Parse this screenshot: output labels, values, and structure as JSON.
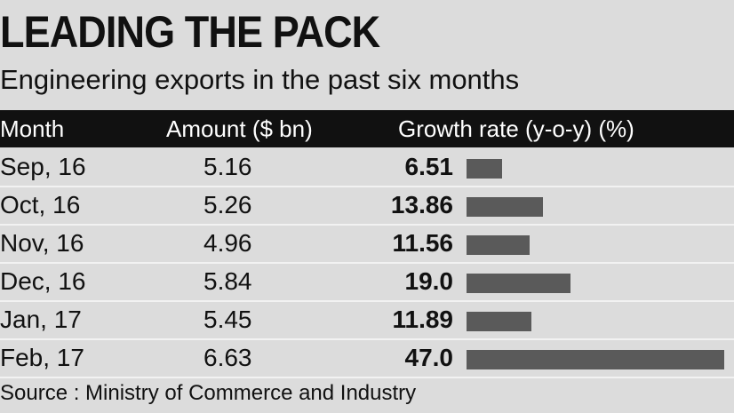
{
  "title": "LEADING THE PACK",
  "subtitle": "Engineering exports in the past six months",
  "headers": {
    "month": "Month",
    "amount": "Amount ($ bn)",
    "growth": "Growth rate (y-o-y) (%)"
  },
  "rows": [
    {
      "month": "Sep, 16",
      "amount": "5.16",
      "growth": "6.51"
    },
    {
      "month": "Oct, 16",
      "amount": "5.26",
      "growth": "13.86"
    },
    {
      "month": "Nov, 16",
      "amount": "4.96",
      "growth": "11.56"
    },
    {
      "month": "Dec, 16",
      "amount": "5.84",
      "growth": "19.0"
    },
    {
      "month": "Jan, 17",
      "amount": "5.45",
      "growth": "11.89"
    },
    {
      "month": "Feb, 17",
      "amount": "6.63",
      "growth": "47.0"
    }
  ],
  "source": "Source : Ministry of Commerce and Industry",
  "colors": {
    "bar": "#5a5a5a",
    "header_bg": "#111111",
    "background": "#dcdcdc"
  },
  "chart_data": {
    "type": "table",
    "title": "LEADING THE PACK",
    "subtitle": "Engineering exports in the past six months",
    "columns": [
      "Month",
      "Amount ($ bn)",
      "Growth rate (y-o-y) (%)"
    ],
    "categories": [
      "Sep, 16",
      "Oct, 16",
      "Nov, 16",
      "Dec, 16",
      "Jan, 17",
      "Feb, 17"
    ],
    "series": [
      {
        "name": "Amount ($ bn)",
        "values": [
          5.16,
          5.26,
          4.96,
          5.84,
          5.45,
          6.63
        ]
      },
      {
        "name": "Growth rate (y-o-y) (%)",
        "values": [
          6.51,
          13.86,
          11.56,
          19.0,
          11.89,
          47.0
        ]
      }
    ],
    "bar_series": "Growth rate (y-o-y) (%)",
    "bar_max": 47.0
  }
}
